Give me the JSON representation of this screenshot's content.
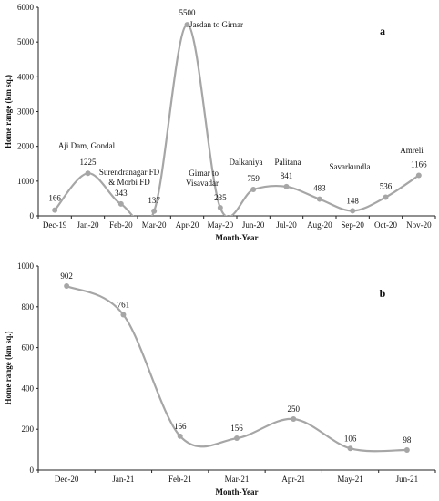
{
  "chart_data": [
    {
      "type": "line",
      "panel_label": "a",
      "categories": [
        "Dec-19",
        "Jan-20",
        "Feb-20",
        "Mar-20",
        "Apr-20",
        "May-20",
        "Jun-20",
        "Jul-20",
        "Aug-20",
        "Sep-20",
        "Oct-20",
        "Nov-20"
      ],
      "values": [
        166,
        1225,
        343,
        137,
        5500,
        235,
        759,
        841,
        483,
        148,
        536,
        1166
      ],
      "data_labels": [
        "166",
        "1225",
        "343",
        "137",
        "5500",
        "235",
        "759",
        "841",
        "483",
        "148",
        "536",
        "1166"
      ],
      "annotations": [
        {
          "index": 1,
          "lines": [
            "Aji Dam, Gondal"
          ]
        },
        {
          "index": 2,
          "lines": [
            "Surendranagar FD",
            "& Morbi FD"
          ]
        },
        {
          "index": 4,
          "lines": [
            "Jasdan to Girnar"
          ]
        },
        {
          "index": 5,
          "lines": [
            "Girnar to",
            "Visavadar"
          ]
        },
        {
          "index": 6,
          "lines": [
            "Dalkaniya"
          ]
        },
        {
          "index": 7,
          "lines": [
            "Palitana"
          ]
        },
        {
          "index": 9,
          "lines": [
            "Savarkundla"
          ]
        },
        {
          "index": 11,
          "lines": [
            "Amreli"
          ]
        }
      ],
      "xlabel": "Month-Year",
      "ylabel": "Home range (km sq.)",
      "ylim": [
        0,
        6000
      ],
      "yticks": [
        0,
        1000,
        2000,
        3000,
        4000,
        5000,
        6000
      ],
      "grid": false,
      "line_color": "#a6a6a6"
    },
    {
      "type": "line",
      "panel_label": "b",
      "categories": [
        "Dec-20",
        "Jan-21",
        "Feb-21",
        "Mar-21",
        "Apr-21",
        "May-21",
        "Jun-21"
      ],
      "values": [
        902,
        761,
        166,
        156,
        250,
        106,
        98
      ],
      "data_labels": [
        "902",
        "761",
        "166",
        "156",
        "250",
        "106",
        "98"
      ],
      "xlabel": "Month-Year",
      "ylabel": "Home range (km sq.)",
      "ylim": [
        0,
        1000
      ],
      "yticks": [
        0,
        200,
        400,
        600,
        800,
        1000
      ],
      "grid": false,
      "line_color": "#a6a6a6"
    }
  ]
}
